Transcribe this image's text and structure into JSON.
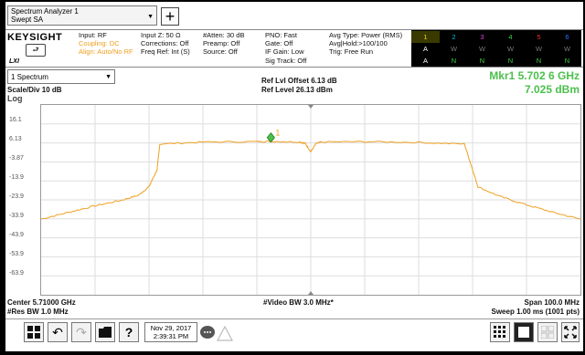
{
  "titlebar": {
    "mode_line1": "Spectrum Analyzer 1",
    "mode_line2": "Swept SA",
    "add_symbol": "+"
  },
  "infobar": {
    "brand": "KEYSIGHT",
    "brand_button": "⮐",
    "lxi": "LXI",
    "col1": [
      "Input: RF",
      "Coupling: DC",
      "Align: Auto/No RF"
    ],
    "col2": [
      "Input Z: 50 Ω",
      "Corrections: Off",
      "Freq Ref: Int (S)"
    ],
    "col3": [
      "#Atten: 30 dB",
      "Preamp: Off",
      "Source: Off"
    ],
    "col4": [
      "PNO: Fast",
      "Gate: Off",
      "IF Gain: Low",
      "Sig Track: Off"
    ],
    "col5": [
      "Avg Type: Power (RMS)",
      "Avg|Hold:>100/100",
      "Trig: Free Run"
    ],
    "traces": {
      "numbers": [
        "1",
        "2",
        "3",
        "4",
        "5",
        "6"
      ],
      "number_colors": [
        "#f0d020",
        "#00c0e0",
        "#e040e0",
        "#40d040",
        "#f03030",
        "#3070ff"
      ],
      "row2": [
        "A",
        "W",
        "W",
        "W",
        "W",
        "W"
      ],
      "row3": [
        "A",
        "N",
        "N",
        "N",
        "N",
        "N"
      ]
    }
  },
  "main": {
    "spectrum_select": "1 Spectrum",
    "scale": "Scale/Div 10 dB",
    "log": "Log",
    "ref_offset": "Ref Lvl Offset 6.13 dB",
    "ref_level": "Ref Level 26.13 dBm",
    "marker_freq": "Mkr1  5.702 6 GHz",
    "marker_amp": "7.025 dBm",
    "marker_label": "1",
    "y_ticks": [
      "16.1",
      "6.13",
      "-3.87",
      "-13.9",
      "-23.9",
      "-33.9",
      "-43.9",
      "-53.9",
      "-63.9"
    ],
    "center": "Center 5.71000 GHz",
    "res_bw": "#Res BW 1.0 MHz",
    "video_bw": "#Video BW 3.0 MHz*",
    "span": "Span 100.0 MHz",
    "sweep": "Sweep 1.00 ms (1001 pts)"
  },
  "bottombar": {
    "date": "Nov 29, 2017",
    "time": "2:39:31 PM"
  },
  "colors": {
    "trace": "#f0a020",
    "marker": "#4cc04c"
  },
  "chart_data": {
    "type": "line",
    "ylim": [
      -73.87,
      26.13
    ],
    "xlim": [
      5.66,
      5.76
    ],
    "series": [
      {
        "x": [
          5.66,
          5.665,
          5.67,
          5.675,
          5.678,
          5.68,
          5.6815,
          5.682,
          5.69,
          5.7,
          5.7026,
          5.708,
          5.709,
          5.71,
          5.711,
          5.712,
          5.72,
          5.73,
          5.7385,
          5.74,
          5.741,
          5.745,
          5.75,
          5.755,
          5.76
        ],
        "y": [
          -34,
          -30.5,
          -27,
          -24,
          -21.5,
          -17,
          -8,
          5.5,
          6.6,
          6.8,
          7.0,
          6.6,
          5.8,
          1.5,
          5.8,
          6.6,
          6.8,
          6.4,
          5.5,
          -8,
          -17,
          -22,
          -26.5,
          -30.5,
          -34
        ]
      }
    ]
  }
}
